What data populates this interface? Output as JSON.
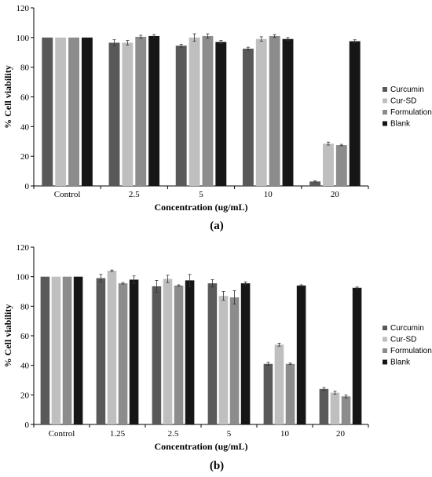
{
  "colors": {
    "Curcumin": "#595959",
    "Cur-SD": "#bfbfbf",
    "Formulation": "#8c8c8c",
    "Blank": "#161616",
    "axis": "#000000",
    "error": "#333333"
  },
  "chart_data": [
    {
      "type": "bar",
      "panel_label": "(a)",
      "xlabel": "Concentration (ug/mL)",
      "ylabel": "% Cell viability",
      "ylim": [
        0,
        120
      ],
      "yticks": [
        "0",
        "20",
        "40",
        "60",
        "80",
        "100",
        "120"
      ],
      "grid": false,
      "legend_position": "right",
      "categories": [
        "Control",
        "2.5",
        "5",
        "10",
        "20"
      ],
      "series": [
        {
          "name": "Curcumin",
          "values": [
            100,
            96.5,
            94.5,
            92.5,
            3
          ],
          "errors": [
            0,
            2,
            1,
            1,
            0.5
          ]
        },
        {
          "name": "Cur-SD",
          "values": [
            100,
            96.5,
            100,
            99,
            28.5
          ],
          "errors": [
            0,
            1.5,
            2.5,
            1.5,
            1
          ]
        },
        {
          "name": "Formulation",
          "values": [
            100,
            100.5,
            101,
            101,
            27.5
          ],
          "errors": [
            0,
            1,
            1.5,
            1,
            0.5
          ]
        },
        {
          "name": "Blank",
          "values": [
            100,
            101,
            97,
            99,
            97.5
          ],
          "errors": [
            0,
            1,
            1,
            1,
            1
          ]
        }
      ]
    },
    {
      "type": "bar",
      "panel_label": "(b)",
      "xlabel": "Concentration (ug/mL)",
      "ylabel": "% Cell viability",
      "ylim": [
        0,
        120
      ],
      "yticks": [
        "0",
        "20",
        "40",
        "60",
        "80",
        "100",
        "120"
      ],
      "grid": false,
      "legend_position": "right",
      "categories": [
        "Control",
        "1.25",
        "2.5",
        "5",
        "10",
        "20"
      ],
      "series": [
        {
          "name": "Curcumin",
          "values": [
            100,
            99,
            93.5,
            95.5,
            41,
            24
          ],
          "errors": [
            0,
            2.5,
            4,
            2.5,
            1,
            1
          ]
        },
        {
          "name": "Cur-SD",
          "values": [
            100,
            104,
            98.5,
            87,
            54,
            21.5
          ],
          "errors": [
            0,
            0.5,
            2.5,
            3,
            1,
            1
          ]
        },
        {
          "name": "Formulation",
          "values": [
            100,
            95.5,
            94,
            86,
            41,
            19
          ],
          "errors": [
            0,
            0.5,
            0.5,
            4.5,
            0.5,
            1
          ]
        },
        {
          "name": "Blank",
          "values": [
            100,
            98,
            97.5,
            95.5,
            94,
            92.5
          ],
          "errors": [
            0,
            2.5,
            4,
            1,
            0.5,
            0.5
          ]
        }
      ]
    }
  ]
}
